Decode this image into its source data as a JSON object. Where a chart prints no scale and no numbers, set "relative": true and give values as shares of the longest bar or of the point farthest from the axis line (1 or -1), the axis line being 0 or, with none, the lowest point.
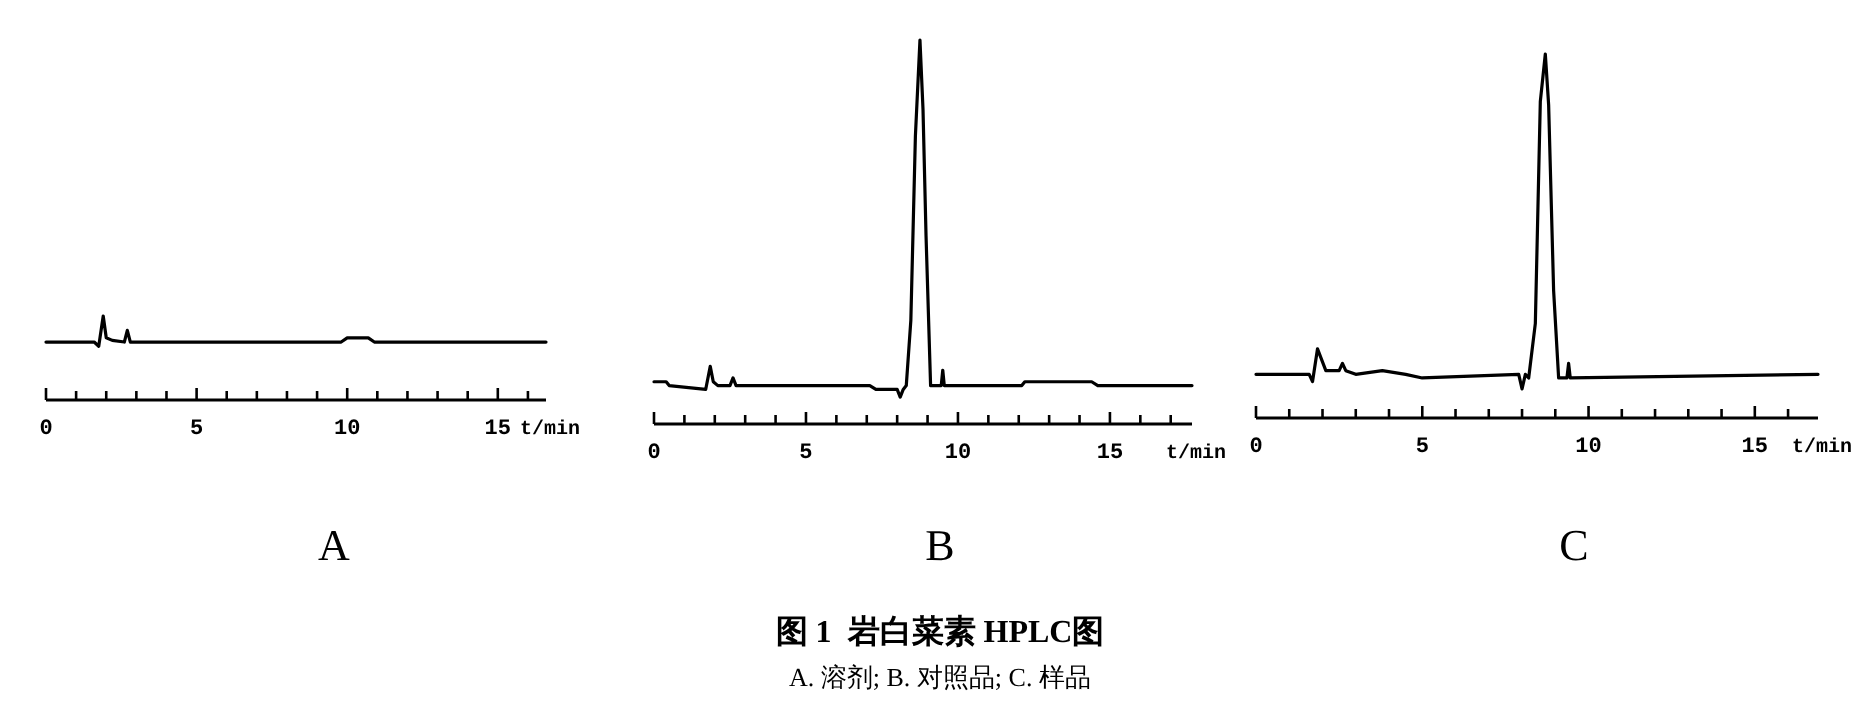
{
  "chart_data": [
    {
      "type": "line",
      "relative": true,
      "title": "A",
      "xlabel": "t/min",
      "xlim": [
        0,
        16.6
      ],
      "xticks": [
        0,
        {
          "value": 1,
          "label": null
        },
        {
          "value": 2,
          "label": null
        },
        {
          "value": 3,
          "label": null
        },
        {
          "value": 4,
          "label": null
        },
        5,
        {
          "value": 6,
          "label": null
        },
        {
          "value": 7,
          "label": null
        },
        {
          "value": 8,
          "label": null
        },
        {
          "value": 9,
          "label": null
        },
        10,
        {
          "value": 11,
          "label": null
        },
        {
          "value": 12,
          "label": null
        },
        {
          "value": 13,
          "label": null
        },
        {
          "value": 14,
          "label": null
        },
        15,
        {
          "value": 16,
          "label": null
        }
      ],
      "series": [
        {
          "color": "#000000",
          "x": [
            0,
            1.6,
            1.75,
            1.9,
            2.0,
            2.2,
            2.6,
            2.7,
            2.8,
            9.8,
            10.0,
            10.7,
            10.9,
            16.6
          ],
          "values": [
            0.69,
            0.69,
            0.64,
            1,
            0.74,
            0.71,
            0.69,
            0.83,
            0.69,
            0.69,
            0.74,
            0.74,
            0.69,
            0.69
          ]
        }
      ],
      "annotations": [
        "图 1  岩白菜素 HPLC图",
        "A. 溶剂; B. 对照品; C. 样品"
      ]
    },
    {
      "type": "line",
      "relative": true,
      "title": "B",
      "xlabel": "t/min",
      "xlim": [
        0,
        17.7
      ],
      "xticks": [
        0,
        {
          "value": 1,
          "label": null
        },
        {
          "value": 2,
          "label": null
        },
        {
          "value": 3,
          "label": null
        },
        {
          "value": 4,
          "label": null
        },
        5,
        {
          "value": 6,
          "label": null
        },
        {
          "value": 7,
          "label": null
        },
        {
          "value": 8,
          "label": null
        },
        {
          "value": 9,
          "label": null
        },
        10,
        {
          "value": 11,
          "label": null
        },
        {
          "value": 12,
          "label": null
        },
        {
          "value": 13,
          "label": null
        },
        {
          "value": 14,
          "label": null
        },
        15,
        {
          "value": 16,
          "label": null
        },
        {
          "value": 17,
          "label": null
        }
      ],
      "series": [
        {
          "color": "#000000",
          "x": [
            0,
            0.4,
            0.5,
            1.7,
            1.85,
            1.95,
            2.1,
            2.5,
            2.6,
            2.7,
            7.1,
            7.3,
            8.0,
            8.1,
            8.2,
            8.3,
            8.45,
            8.6,
            8.75,
            8.85,
            8.95,
            9.1,
            9.45,
            9.5,
            9.55,
            12.1,
            12.2,
            14.4,
            14.6,
            17.7
          ],
          "values": [
            0.11,
            0.11,
            0.1,
            0.09,
            0.15,
            0.11,
            0.1,
            0.1,
            0.12,
            0.1,
            0.1,
            0.09,
            0.09,
            0.07,
            0.09,
            0.1,
            0.27,
            0.75,
            1,
            0.82,
            0.49,
            0.1,
            0.1,
            0.14,
            0.1,
            0.1,
            0.11,
            0.11,
            0.1,
            0.1
          ]
        }
      ]
    },
    {
      "type": "line",
      "relative": true,
      "title": "C",
      "xlabel": "t/min",
      "xlim": [
        0,
        16.9
      ],
      "xticks": [
        0,
        {
          "value": 1,
          "label": null
        },
        {
          "value": 2,
          "label": null
        },
        {
          "value": 3,
          "label": null
        },
        {
          "value": 4,
          "label": null
        },
        5,
        {
          "value": 6,
          "label": null
        },
        {
          "value": 7,
          "label": null
        },
        {
          "value": 8,
          "label": null
        },
        {
          "value": 9,
          "label": null
        },
        10,
        {
          "value": 11,
          "label": null
        },
        {
          "value": 12,
          "label": null
        },
        {
          "value": 13,
          "label": null
        },
        {
          "value": 14,
          "label": null
        },
        15,
        {
          "value": 16,
          "label": null
        }
      ],
      "series": [
        {
          "color": "#000000",
          "x": [
            0,
            1.6,
            1.7,
            1.85,
            2.1,
            2.5,
            2.6,
            2.7,
            3.0,
            3.8,
            4.5,
            5.0,
            7.9,
            8.0,
            8.1,
            8.2,
            8.4,
            8.55,
            8.7,
            8.8,
            8.95,
            9.1,
            9.35,
            9.4,
            9.45,
            16.9
          ],
          "values": [
            0.12,
            0.12,
            0.1,
            0.19,
            0.13,
            0.13,
            0.15,
            0.13,
            0.12,
            0.13,
            0.12,
            0.11,
            0.12,
            0.08,
            0.12,
            0.11,
            0.26,
            0.87,
            1,
            0.86,
            0.35,
            0.11,
            0.11,
            0.15,
            0.11,
            0.12
          ]
        }
      ]
    }
  ]
}
